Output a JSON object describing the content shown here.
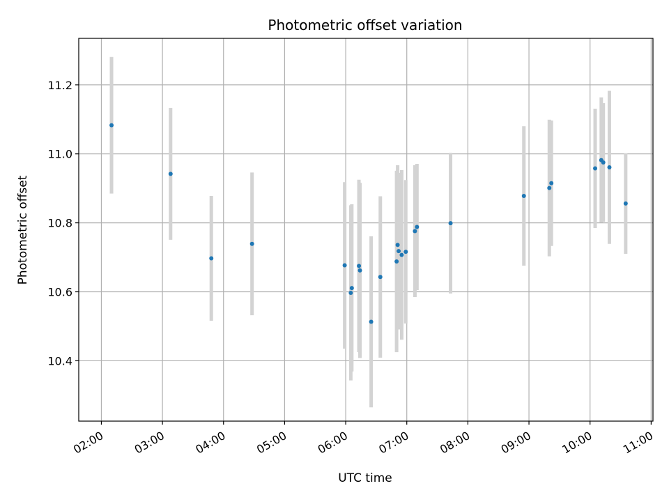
{
  "chart_data": {
    "type": "scatter",
    "title": "Photometric offset variation",
    "xlabel": "UTC time",
    "ylabel": "Photometric offset",
    "x_ticks": [
      "02:00",
      "03:00",
      "04:00",
      "05:00",
      "06:00",
      "07:00",
      "08:00",
      "09:00",
      "10:00",
      "11:00"
    ],
    "y_ticks": [
      "10.4",
      "10.6",
      "10.8",
      "11.0",
      "11.2"
    ],
    "xlim": [
      "01:45",
      "11:00"
    ],
    "ylim": [
      10.225,
      11.335
    ],
    "grid": true,
    "colors": {
      "point": "#1f77b4",
      "errorbar": "#d3d3d3",
      "grid": "#b0b0b0"
    },
    "series": [
      {
        "points": [
          {
            "x": "02:10",
            "y": 11.083,
            "y_low": 10.885,
            "y_high": 11.281
          },
          {
            "x": "03:08",
            "y": 10.942,
            "y_low": 10.751,
            "y_high": 11.133
          },
          {
            "x": "03:48",
            "y": 10.697,
            "y_low": 10.516,
            "y_high": 10.878
          },
          {
            "x": "04:28",
            "y": 10.739,
            "y_low": 10.532,
            "y_high": 10.946
          },
          {
            "x": "05:59",
            "y": 10.677,
            "y_low": 10.435,
            "y_high": 10.918
          },
          {
            "x": "06:05",
            "y": 10.597,
            "y_low": 10.343,
            "y_high": 10.851
          },
          {
            "x": "06:06",
            "y": 10.611,
            "y_low": 10.369,
            "y_high": 10.854
          },
          {
            "x": "06:13",
            "y": 10.675,
            "y_low": 10.425,
            "y_high": 10.925
          },
          {
            "x": "06:14",
            "y": 10.662,
            "y_low": 10.408,
            "y_high": 10.916
          },
          {
            "x": "06:25",
            "y": 10.513,
            "y_low": 10.265,
            "y_high": 10.761
          },
          {
            "x": "06:34",
            "y": 10.643,
            "y_low": 10.409,
            "y_high": 10.877
          },
          {
            "x": "06:50",
            "y": 10.688,
            "y_low": 10.425,
            "y_high": 10.951
          },
          {
            "x": "06:51",
            "y": 10.736,
            "y_low": 10.505,
            "y_high": 10.967
          },
          {
            "x": "06:52",
            "y": 10.718,
            "y_low": 10.491,
            "y_high": 10.945
          },
          {
            "x": "06:55",
            "y": 10.707,
            "y_low": 10.461,
            "y_high": 10.953
          },
          {
            "x": "06:59",
            "y": 10.716,
            "y_low": 10.508,
            "y_high": 10.924
          },
          {
            "x": "07:08",
            "y": 10.776,
            "y_low": 10.585,
            "y_high": 10.967
          },
          {
            "x": "07:10",
            "y": 10.788,
            "y_low": 10.605,
            "y_high": 10.971
          },
          {
            "x": "07:43",
            "y": 10.799,
            "y_low": 10.595,
            "y_high": 11.003
          },
          {
            "x": "08:55",
            "y": 10.878,
            "y_low": 10.676,
            "y_high": 11.08
          },
          {
            "x": "09:20",
            "y": 10.901,
            "y_low": 10.703,
            "y_high": 11.099
          },
          {
            "x": "09:22",
            "y": 10.915,
            "y_low": 10.733,
            "y_high": 11.097
          },
          {
            "x": "10:05",
            "y": 10.958,
            "y_low": 10.785,
            "y_high": 11.131
          },
          {
            "x": "10:11",
            "y": 10.982,
            "y_low": 10.801,
            "y_high": 11.164
          },
          {
            "x": "10:13",
            "y": 10.975,
            "y_low": 10.803,
            "y_high": 11.147
          },
          {
            "x": "10:19",
            "y": 10.961,
            "y_low": 10.739,
            "y_high": 11.183
          },
          {
            "x": "10:35",
            "y": 10.856,
            "y_low": 10.71,
            "y_high": 11.002
          }
        ]
      }
    ]
  }
}
